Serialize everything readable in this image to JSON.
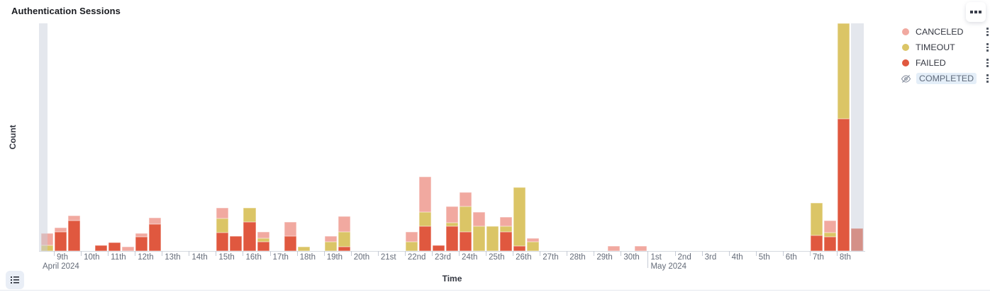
{
  "panel": {
    "title": "Authentication Sessions",
    "options_icon": "boxes-horizontal-icon",
    "legend_toggle_icon": "list-icon"
  },
  "chart_data": {
    "type": "bar",
    "stacked": true,
    "title": "Authentication Sessions",
    "xlabel": "Time",
    "ylabel": "Count",
    "legend_position": "right",
    "grid": false,
    "y_axis_tick_labels_visible": false,
    "y_domain_max_relative": 323,
    "bucket_hours": 12,
    "x_range": [
      "2024-04-08 12:00",
      "2024-05-09 00:00"
    ],
    "stack_order_bottom_to_top": [
      "FAILED",
      "TIMEOUT",
      "CANCELED"
    ],
    "series": [
      {
        "name": "CANCELED",
        "color": "#F1A9A0",
        "visible": true
      },
      {
        "name": "TIMEOUT",
        "color": "#DBC566",
        "visible": true
      },
      {
        "name": "FAILED",
        "color": "#E0583F",
        "visible": true
      },
      {
        "name": "COMPLETED",
        "color": null,
        "visible": false
      }
    ],
    "partial_bucket_color": "#C7CDD9",
    "partial_buckets": [
      0,
      60
    ],
    "note": "values are relative units read from bar pixel heights; y axis shows no numeric ticks",
    "bars": [
      {
        "bucket": 0,
        "time": "Apr 8 12:00",
        "FAILED": 0,
        "TIMEOUT": 8,
        "CANCELED": 17
      },
      {
        "bucket": 1,
        "time": "Apr 9 00:00",
        "FAILED": 27,
        "TIMEOUT": 0,
        "CANCELED": 6
      },
      {
        "bucket": 2,
        "time": "Apr 9 12:00",
        "FAILED": 43,
        "TIMEOUT": 0,
        "CANCELED": 7
      },
      {
        "bucket": 4,
        "time": "Apr 10 12:00",
        "FAILED": 8,
        "TIMEOUT": 0,
        "CANCELED": 0
      },
      {
        "bucket": 5,
        "time": "Apr 11 00:00",
        "FAILED": 12,
        "TIMEOUT": 0,
        "CANCELED": 0
      },
      {
        "bucket": 6,
        "time": "Apr 11 12:00",
        "FAILED": 0,
        "TIMEOUT": 0,
        "CANCELED": 6
      },
      {
        "bucket": 7,
        "time": "Apr 12 00:00",
        "FAILED": 20,
        "TIMEOUT": 0,
        "CANCELED": 5
      },
      {
        "bucket": 8,
        "time": "Apr 12 12:00",
        "FAILED": 38,
        "TIMEOUT": 0,
        "CANCELED": 9
      },
      {
        "bucket": 13,
        "time": "Apr 15 00:00",
        "FAILED": 26,
        "TIMEOUT": 20,
        "CANCELED": 15
      },
      {
        "bucket": 14,
        "time": "Apr 15 12:00",
        "FAILED": 21,
        "TIMEOUT": 0,
        "CANCELED": 0
      },
      {
        "bucket": 15,
        "time": "Apr 16 00:00",
        "FAILED": 41,
        "TIMEOUT": 20,
        "CANCELED": 0
      },
      {
        "bucket": 16,
        "time": "Apr 16 12:00",
        "FAILED": 13,
        "TIMEOUT": 5,
        "CANCELED": 9
      },
      {
        "bucket": 18,
        "time": "Apr 17 12:00",
        "FAILED": 21,
        "TIMEOUT": 0,
        "CANCELED": 20
      },
      {
        "bucket": 19,
        "time": "Apr 18 00:00",
        "FAILED": 0,
        "TIMEOUT": 6,
        "CANCELED": 0
      },
      {
        "bucket": 21,
        "time": "Apr 19 00:00",
        "FAILED": 0,
        "TIMEOUT": 13,
        "CANCELED": 8
      },
      {
        "bucket": 22,
        "time": "Apr 19 12:00",
        "FAILED": 6,
        "TIMEOUT": 21,
        "CANCELED": 22
      },
      {
        "bucket": 27,
        "time": "Apr 22 00:00",
        "FAILED": 0,
        "TIMEOUT": 13,
        "CANCELED": 14
      },
      {
        "bucket": 28,
        "time": "Apr 22 12:00",
        "FAILED": 35,
        "TIMEOUT": 20,
        "CANCELED": 50
      },
      {
        "bucket": 29,
        "time": "Apr 23 00:00",
        "FAILED": 8,
        "TIMEOUT": 0,
        "CANCELED": 0
      },
      {
        "bucket": 30,
        "time": "Apr 23 12:00",
        "FAILED": 35,
        "TIMEOUT": 5,
        "CANCELED": 23
      },
      {
        "bucket": 31,
        "time": "Apr 24 00:00",
        "FAILED": 27,
        "TIMEOUT": 36,
        "CANCELED": 20
      },
      {
        "bucket": 32,
        "time": "Apr 24 12:00",
        "FAILED": 0,
        "TIMEOUT": 35,
        "CANCELED": 20
      },
      {
        "bucket": 33,
        "time": "Apr 25 00:00",
        "FAILED": 0,
        "TIMEOUT": 35,
        "CANCELED": 0
      },
      {
        "bucket": 34,
        "time": "Apr 25 12:00",
        "FAILED": 27,
        "TIMEOUT": 8,
        "CANCELED": 13
      },
      {
        "bucket": 35,
        "time": "Apr 26 00:00",
        "FAILED": 7,
        "TIMEOUT": 83,
        "CANCELED": 0
      },
      {
        "bucket": 36,
        "time": "Apr 26 12:00",
        "FAILED": 0,
        "TIMEOUT": 13,
        "CANCELED": 5
      },
      {
        "bucket": 42,
        "time": "Apr 29 12:00",
        "FAILED": 0,
        "TIMEOUT": 0,
        "CANCELED": 7
      },
      {
        "bucket": 44,
        "time": "Apr 30 12:00",
        "FAILED": 0,
        "TIMEOUT": 0,
        "CANCELED": 7
      },
      {
        "bucket": 57,
        "time": "May 7 00:00",
        "FAILED": 22,
        "TIMEOUT": 46,
        "CANCELED": 0
      },
      {
        "bucket": 58,
        "time": "May 7 12:00",
        "FAILED": 20,
        "TIMEOUT": 6,
        "CANCELED": 17
      },
      {
        "bucket": 59,
        "time": "May 8 00:00",
        "FAILED": 188,
        "TIMEOUT": 135,
        "CANCELED": 0
      },
      {
        "bucket": 60,
        "time": "May 8 12:00",
        "FAILED": 32,
        "TIMEOUT": 0,
        "CANCELED": 0
      }
    ]
  },
  "axis": {
    "xlabel": "Time",
    "ylabel": "Count",
    "day_labels": [
      {
        "label": "9th",
        "d": 1
      },
      {
        "label": "10th",
        "d": 2
      },
      {
        "label": "11th",
        "d": 3
      },
      {
        "label": "12th",
        "d": 4
      },
      {
        "label": "13th",
        "d": 5
      },
      {
        "label": "14th",
        "d": 6
      },
      {
        "label": "15th",
        "d": 7
      },
      {
        "label": "16th",
        "d": 8
      },
      {
        "label": "17th",
        "d": 9
      },
      {
        "label": "18th",
        "d": 10
      },
      {
        "label": "19th",
        "d": 11
      },
      {
        "label": "20th",
        "d": 12
      },
      {
        "label": "21st",
        "d": 13
      },
      {
        "label": "22nd",
        "d": 14
      },
      {
        "label": "23rd",
        "d": 15
      },
      {
        "label": "24th",
        "d": 16
      },
      {
        "label": "25th",
        "d": 17
      },
      {
        "label": "26th",
        "d": 18
      },
      {
        "label": "27th",
        "d": 19
      },
      {
        "label": "28th",
        "d": 20
      },
      {
        "label": "29th",
        "d": 21
      },
      {
        "label": "30th",
        "d": 22
      },
      {
        "label": "1st",
        "d": 23
      },
      {
        "label": "2nd",
        "d": 24
      },
      {
        "label": "3rd",
        "d": 25
      },
      {
        "label": "4th",
        "d": 26
      },
      {
        "label": "5th",
        "d": 27
      },
      {
        "label": "6th",
        "d": 28
      },
      {
        "label": "7th",
        "d": 29
      },
      {
        "label": "8th",
        "d": 30
      }
    ],
    "month_labels": [
      {
        "label": "April 2024",
        "anchor": "plot-start"
      },
      {
        "label": "May 2024",
        "anchor_d": 23
      }
    ]
  },
  "legend": {
    "items": [
      {
        "label": "CANCELED",
        "color": "#F1A9A0",
        "hidden": false
      },
      {
        "label": "TIMEOUT",
        "color": "#DBC566",
        "hidden": false
      },
      {
        "label": "FAILED",
        "color": "#E0583F",
        "hidden": false
      },
      {
        "label": "COMPLETED",
        "color": null,
        "hidden": true
      }
    ],
    "action_icon": "vertical-dots-icon",
    "hidden_icon": "eye-slash-icon"
  }
}
